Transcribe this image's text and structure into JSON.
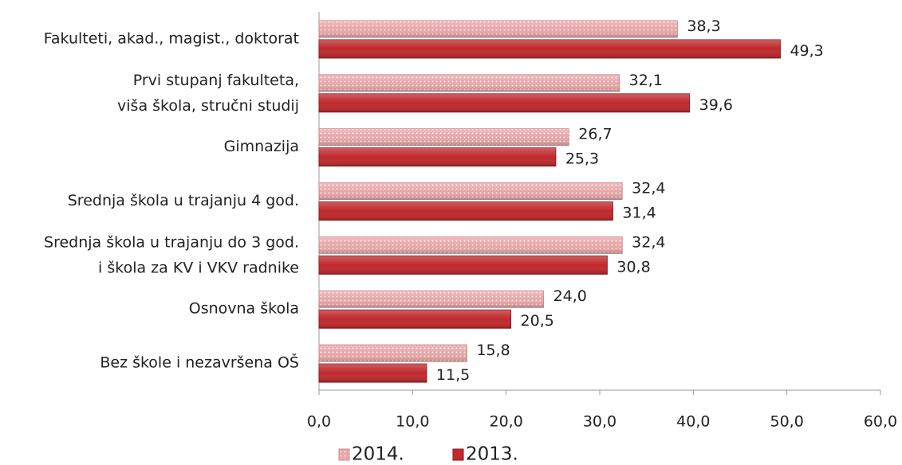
{
  "chart_data": {
    "type": "barh",
    "categories": [
      "Fakulteti, akad., magist., doktorat",
      "Prvi stupanj fakulteta,\nviša škola, stručni studij",
      "Gimnazija",
      "Srednja škola u trajanju  4 god.",
      "Srednja škola u trajanju do 3 god.\ni škola za KV i VKV radnike",
      "Osnovna škola",
      "Bez škole i nezavršena OŠ"
    ],
    "series": [
      {
        "name": "2014.",
        "color": "#e8a6a8",
        "values": [
          38.3,
          32.1,
          26.7,
          32.4,
          32.4,
          24.0,
          15.8
        ],
        "value_labels": [
          "38,3",
          "32,1",
          "26,7",
          "32,4",
          "32,4",
          "24,0",
          "15,8"
        ]
      },
      {
        "name": "2013.",
        "color": "#c0282c",
        "values": [
          49.3,
          39.6,
          25.3,
          31.4,
          30.8,
          20.5,
          11.5
        ],
        "value_labels": [
          "49,3",
          "39,6",
          "25,3",
          "31,4",
          "30,8",
          "20,5",
          "11,5"
        ]
      }
    ],
    "xlim": [
      0,
      60
    ],
    "xticks": [
      {
        "value": 0,
        "label": "0,0"
      },
      {
        "value": 10,
        "label": "10,0"
      },
      {
        "value": 20,
        "label": "20,0"
      },
      {
        "value": 30,
        "label": "30,0"
      },
      {
        "value": 40,
        "label": "40,0"
      },
      {
        "value": 50,
        "label": "50,0"
      },
      {
        "value": 60,
        "label": "60,0"
      }
    ],
    "grid": false,
    "legend": "bottom"
  }
}
